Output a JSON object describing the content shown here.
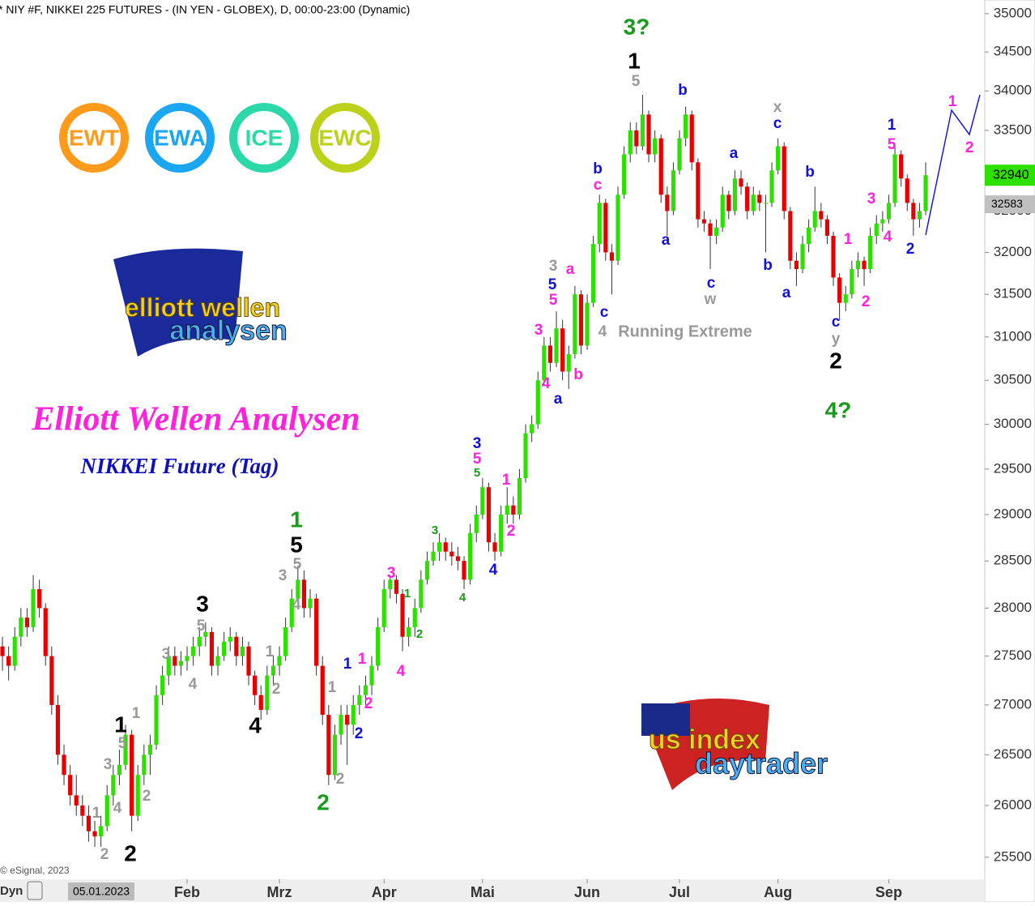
{
  "chart_data": {
    "type": "candlestick",
    "header": "* NIY #F, NIKKEI 225 FUTURES - (IN YEN - GLOBEX), D, 00:00-23:00 (Dynamic)",
    "title": "Elliott Wellen Analysen",
    "subtitle": "NIKKEI Future (Tag)",
    "copyright": "© eSignal, 2023",
    "mode_label": "Dyn",
    "date_label": "05.01.2023",
    "log_scale": true,
    "up_color": "#2ee000",
    "down_color": "#e80000",
    "ylim": [
      25290,
      35180
    ],
    "yticks": [
      25500,
      26000,
      26500,
      27000,
      27500,
      28000,
      28500,
      29000,
      29500,
      30000,
      30500,
      31000,
      31500,
      32000,
      32500,
      33000,
      33500,
      34000,
      34500,
      35000
    ],
    "xlim": [
      -0.4,
      159.6
    ],
    "xticks": [
      {
        "value": 30,
        "label": "Feb"
      },
      {
        "value": 45,
        "label": "Mrz"
      },
      {
        "value": 62,
        "label": "Apr"
      },
      {
        "value": 78,
        "label": "Mai"
      },
      {
        "value": 95,
        "label": "Jun"
      },
      {
        "value": 110,
        "label": "Jul"
      },
      {
        "value": 126,
        "label": "Aug"
      },
      {
        "value": 144,
        "label": "Sep"
      }
    ],
    "last_price": 32940,
    "ref_price": 32583,
    "ohlc": [
      [
        27600,
        27700,
        27350,
        27500
      ],
      [
        27500,
        27600,
        27250,
        27400
      ],
      [
        27400,
        27800,
        27350,
        27700
      ],
      [
        27700,
        28000,
        27600,
        27900
      ],
      [
        27900,
        28000,
        27700,
        27800
      ],
      [
        27800,
        28350,
        27750,
        28200
      ],
      [
        28200,
        28300,
        27900,
        28000
      ],
      [
        28000,
        28050,
        27400,
        27500
      ],
      [
        27500,
        27600,
        26900,
        27000
      ],
      [
        27000,
        27100,
        26400,
        26500
      ],
      [
        26500,
        26600,
        26200,
        26300
      ],
      [
        26300,
        26400,
        26000,
        26100
      ],
      [
        26100,
        26300,
        25900,
        26000
      ],
      [
        26000,
        26100,
        25800,
        25900
      ],
      [
        25900,
        26000,
        25650,
        25750
      ],
      [
        25750,
        25850,
        25600,
        25700
      ],
      [
        25700,
        25900,
        25600,
        25800
      ],
      [
        25800,
        26200,
        25750,
        26100
      ],
      [
        26100,
        26400,
        26000,
        26300
      ],
      [
        26300,
        26550,
        26200,
        26400
      ],
      [
        26400,
        26800,
        26350,
        26700
      ],
      [
        26700,
        26750,
        25750,
        25900
      ],
      [
        25900,
        26400,
        25850,
        26300
      ],
      [
        26300,
        26600,
        26200,
        26500
      ],
      [
        26500,
        26700,
        26300,
        26600
      ],
      [
        26600,
        27200,
        26550,
        27100
      ],
      [
        27100,
        27400,
        27000,
        27300
      ],
      [
        27300,
        27600,
        27200,
        27500
      ],
      [
        27500,
        27600,
        27300,
        27400
      ],
      [
        27400,
        27550,
        27300,
        27450
      ],
      [
        27450,
        27600,
        27350,
        27500
      ],
      [
        27500,
        27700,
        27400,
        27600
      ],
      [
        27600,
        27800,
        27500,
        27700
      ],
      [
        27700,
        27850,
        27600,
        27750
      ],
      [
        27750,
        27800,
        27300,
        27400
      ],
      [
        27400,
        27600,
        27300,
        27500
      ],
      [
        27500,
        27750,
        27450,
        27650
      ],
      [
        27650,
        27800,
        27550,
        27700
      ],
      [
        27700,
        27750,
        27400,
        27500
      ],
      [
        27500,
        27700,
        27400,
        27600
      ],
      [
        27600,
        27650,
        27200,
        27300
      ],
      [
        27300,
        27350,
        27000,
        27100
      ],
      [
        27100,
        27200,
        26850,
        26950
      ],
      [
        26950,
        27400,
        26900,
        27300
      ],
      [
        27300,
        27500,
        27200,
        27400
      ],
      [
        27400,
        27600,
        27300,
        27500
      ],
      [
        27500,
        27900,
        27450,
        27800
      ],
      [
        27800,
        28200,
        27750,
        28100
      ],
      [
        28100,
        28450,
        28000,
        28300
      ],
      [
        28300,
        28400,
        27900,
        28000
      ],
      [
        28000,
        28200,
        27900,
        28100
      ],
      [
        28100,
        28150,
        27300,
        27400
      ],
      [
        27400,
        27500,
        26800,
        26900
      ],
      [
        26900,
        27000,
        26200,
        26300
      ],
      [
        26300,
        26800,
        26250,
        26700
      ],
      [
        26700,
        27000,
        26600,
        26900
      ],
      [
        26900,
        27000,
        26400,
        26800
      ],
      [
        26800,
        27100,
        26700,
        27000
      ],
      [
        27000,
        27200,
        26900,
        27100
      ],
      [
        27100,
        27300,
        27000,
        27200
      ],
      [
        27200,
        27500,
        27100,
        27400
      ],
      [
        27400,
        27900,
        27350,
        27800
      ],
      [
        27800,
        28300,
        27750,
        28200
      ],
      [
        28200,
        28350,
        28100,
        28300
      ],
      [
        28300,
        28350,
        28050,
        28150
      ],
      [
        28150,
        28200,
        27550,
        27700
      ],
      [
        27700,
        27900,
        27600,
        27800
      ],
      [
        27800,
        28100,
        27700,
        28000
      ],
      [
        28000,
        28400,
        27950,
        28300
      ],
      [
        28300,
        28600,
        28250,
        28500
      ],
      [
        28500,
        28700,
        28450,
        28600
      ],
      [
        28600,
        28800,
        28500,
        28700
      ],
      [
        28700,
        28750,
        28500,
        28600
      ],
      [
        28600,
        28700,
        28450,
        28550
      ],
      [
        28550,
        28650,
        28400,
        28500
      ],
      [
        28500,
        28550,
        28200,
        28300
      ],
      [
        28300,
        28900,
        28250,
        28800
      ],
      [
        28800,
        29100,
        28700,
        29000
      ],
      [
        29000,
        29400,
        28950,
        29300
      ],
      [
        29300,
        29350,
        28600,
        28700
      ],
      [
        28700,
        28800,
        28500,
        28600
      ],
      [
        28600,
        29100,
        28550,
        29000
      ],
      [
        29000,
        29300,
        28900,
        29100
      ],
      [
        29100,
        29200,
        28900,
        29000
      ],
      [
        29000,
        29500,
        28950,
        29400
      ],
      [
        29400,
        30000,
        29350,
        29900
      ],
      [
        29900,
        30100,
        29800,
        30000
      ],
      [
        30000,
        30600,
        29950,
        30500
      ],
      [
        30500,
        31000,
        30450,
        30900
      ],
      [
        30900,
        31000,
        30600,
        30700
      ],
      [
        30700,
        31300,
        30650,
        31100
      ],
      [
        31100,
        31200,
        30500,
        30600
      ],
      [
        30600,
        30900,
        30400,
        30800
      ],
      [
        30800,
        31600,
        30750,
        31500
      ],
      [
        31500,
        31550,
        30800,
        30900
      ],
      [
        30900,
        31500,
        30850,
        31400
      ],
      [
        31400,
        32200,
        31350,
        32100
      ],
      [
        32100,
        32700,
        32000,
        32600
      ],
      [
        32600,
        32650,
        31900,
        32000
      ],
      [
        32000,
        32100,
        31500,
        31900
      ],
      [
        31900,
        32800,
        31850,
        32700
      ],
      [
        32700,
        33300,
        32650,
        33200
      ],
      [
        33200,
        33600,
        33100,
        33500
      ],
      [
        33500,
        33600,
        33200,
        33300
      ],
      [
        33300,
        33950,
        33250,
        33700
      ],
      [
        33700,
        33750,
        33100,
        33200
      ],
      [
        33200,
        33500,
        33100,
        33400
      ],
      [
        33400,
        33450,
        32600,
        32700
      ],
      [
        32700,
        32800,
        32200,
        32500
      ],
      [
        32500,
        33100,
        32450,
        33000
      ],
      [
        33000,
        33500,
        32950,
        33400
      ],
      [
        33400,
        33800,
        33300,
        33700
      ],
      [
        33700,
        33750,
        33000,
        33100
      ],
      [
        33100,
        33150,
        32300,
        32400
      ],
      [
        32400,
        32500,
        32250,
        32350
      ],
      [
        32350,
        32400,
        31800,
        32200
      ],
      [
        32200,
        32400,
        32100,
        32300
      ],
      [
        32300,
        32800,
        32250,
        32700
      ],
      [
        32700,
        32750,
        32400,
        32500
      ],
      [
        32500,
        33000,
        32450,
        32900
      ],
      [
        32900,
        33000,
        32700,
        32800
      ],
      [
        32800,
        32850,
        32400,
        32500
      ],
      [
        32500,
        32800,
        32450,
        32700
      ],
      [
        32700,
        32750,
        32500,
        32600
      ],
      [
        32600,
        32700,
        32000,
        32600
      ],
      [
        32600,
        33100,
        32550,
        33000
      ],
      [
        33000,
        33400,
        32950,
        33300
      ],
      [
        33300,
        33350,
        32400,
        32500
      ],
      [
        32500,
        32550,
        31800,
        31900
      ],
      [
        31900,
        32000,
        31600,
        31800
      ],
      [
        31800,
        32200,
        31750,
        32100
      ],
      [
        32100,
        32400,
        32000,
        32300
      ],
      [
        32300,
        32800,
        32250,
        32500
      ],
      [
        32500,
        32600,
        32300,
        32400
      ],
      [
        32400,
        32450,
        32100,
        32200
      ],
      [
        32200,
        32250,
        31600,
        31700
      ],
      [
        31700,
        31750,
        31200,
        31400
      ],
      [
        31400,
        31600,
        31300,
        31500
      ],
      [
        31500,
        31900,
        31450,
        31800
      ],
      [
        31800,
        32000,
        31700,
        31900
      ],
      [
        31900,
        31950,
        31600,
        31800
      ],
      [
        31800,
        32300,
        31750,
        32200
      ],
      [
        32200,
        32450,
        32100,
        32350
      ],
      [
        32350,
        32500,
        32250,
        32400
      ],
      [
        32400,
        32700,
        32350,
        32600
      ],
      [
        32600,
        33300,
        32550,
        33200
      ],
      [
        33200,
        33250,
        32800,
        32900
      ],
      [
        32900,
        32950,
        32500,
        32600
      ],
      [
        32600,
        32650,
        32200,
        32400
      ],
      [
        32400,
        32600,
        32300,
        32500
      ],
      [
        32500,
        33100,
        32450,
        32940
      ]
    ],
    "annotations": [
      {
        "text": "3?",
        "color": "#1a9a1a"
      },
      {
        "text": "1",
        "color": "#000000"
      },
      {
        "text": "5",
        "color": "#999999"
      },
      {
        "text": "b",
        "color": "#1010d8"
      },
      {
        "text": "x",
        "color": "#999999"
      },
      {
        "text": "c",
        "color": "#1010d8"
      },
      {
        "text": "a",
        "color": "#1010d8"
      },
      {
        "text": "b",
        "color": "#1010d8"
      },
      {
        "text": "1",
        "color": "#1010d8"
      },
      {
        "text": "5",
        "color": "#ff22dd"
      },
      {
        "text": "1",
        "color": "#ff22dd"
      },
      {
        "text": "2",
        "color": "#ff22dd"
      },
      {
        "text": "b",
        "color": "#1010d8"
      },
      {
        "text": "c",
        "color": "#ff22dd"
      },
      {
        "text": "a",
        "color": "#1010d8"
      },
      {
        "text": "c",
        "color": "#1010d8"
      },
      {
        "text": "w",
        "color": "#999999"
      },
      {
        "text": "b",
        "color": "#1010d8"
      },
      {
        "text": "a",
        "color": "#1010d8"
      },
      {
        "text": "3",
        "color": "#ff22dd"
      },
      {
        "text": "4",
        "color": "#ff22dd"
      },
      {
        "text": "2",
        "color": "#1010d8"
      },
      {
        "text": "1",
        "color": "#ff22dd"
      },
      {
        "text": "2",
        "color": "#ff22dd"
      },
      {
        "text": "c",
        "color": "#1010d8"
      },
      {
        "text": "y",
        "color": "#999999"
      },
      {
        "text": "2",
        "color": "#000000"
      },
      {
        "text": "4?",
        "color": "#1a9a1a"
      },
      {
        "text": "3",
        "color": "#999999"
      },
      {
        "text": "a",
        "color": "#ff22dd"
      },
      {
        "text": "5",
        "color": "#1010d8"
      },
      {
        "text": "5",
        "color": "#ff22dd"
      },
      {
        "text": "c",
        "color": "#1010d8"
      },
      {
        "text": "4",
        "color": "#999999"
      },
      {
        "text": "Running Extreme",
        "color": "#999999"
      },
      {
        "text": "3",
        "color": "#ff22dd"
      },
      {
        "text": "4",
        "color": "#ff22dd"
      },
      {
        "text": "b",
        "color": "#ff22dd"
      },
      {
        "text": "a",
        "color": "#1010d8"
      },
      {
        "text": "3",
        "color": "#1010d8"
      },
      {
        "text": "5",
        "color": "#ff22dd"
      },
      {
        "text": "5",
        "color": "#1a9a1a"
      },
      {
        "text": "1",
        "color": "#ff22dd"
      },
      {
        "text": "2",
        "color": "#ff22dd"
      },
      {
        "text": "4",
        "color": "#1010d8"
      },
      {
        "text": "3",
        "color": "#1a9a1a"
      },
      {
        "text": "4",
        "color": "#1a9a1a"
      },
      {
        "text": "3",
        "color": "#ff22dd"
      },
      {
        "text": "1",
        "color": "#1a9a1a"
      },
      {
        "text": "2",
        "color": "#1a9a1a"
      },
      {
        "text": "4",
        "color": "#ff22dd"
      },
      {
        "text": "1",
        "color": "#1010d8"
      },
      {
        "text": "1",
        "color": "#ff22dd"
      },
      {
        "text": "2",
        "color": "#ff22dd"
      },
      {
        "text": "2",
        "color": "#1010d8"
      },
      {
        "text": "1",
        "color": "#1a9a1a"
      },
      {
        "text": "5",
        "color": "#000000"
      },
      {
        "text": "5",
        "color": "#999999"
      },
      {
        "text": "3",
        "color": "#999999"
      },
      {
        "text": "4",
        "color": "#999999"
      },
      {
        "text": "1",
        "color": "#999999"
      },
      {
        "text": "2",
        "color": "#999999"
      },
      {
        "text": "2",
        "color": "#1a9a1a"
      },
      {
        "text": "3",
        "color": "#000000"
      },
      {
        "text": "5",
        "color": "#999999"
      },
      {
        "text": "3",
        "color": "#999999"
      },
      {
        "text": "4",
        "color": "#999999"
      },
      {
        "text": "1",
        "color": "#999999"
      },
      {
        "text": "2",
        "color": "#999999"
      },
      {
        "text": "4",
        "color": "#000000"
      },
      {
        "text": "1",
        "color": "#000000"
      },
      {
        "text": "1",
        "color": "#999999"
      },
      {
        "text": "5",
        "color": "#999999"
      },
      {
        "text": "3",
        "color": "#999999"
      },
      {
        "text": "4",
        "color": "#999999"
      },
      {
        "text": "2",
        "color": "#999999"
      },
      {
        "text": "1",
        "color": "#999999"
      },
      {
        "text": "2",
        "color": "#999999"
      },
      {
        "text": "2",
        "color": "#000000"
      }
    ],
    "logos": [
      {
        "text": "EWT",
        "color": "#ff9a1a"
      },
      {
        "text": "EWA",
        "color": "#1aa6f0"
      },
      {
        "text": "ICE",
        "color": "#2ad8a8"
      },
      {
        "text": "EWC",
        "color": "#bcd21a"
      }
    ],
    "brand_1": [
      "elliott wellen",
      "analysen"
    ],
    "brand_2": [
      "us index",
      "daytrader"
    ]
  }
}
